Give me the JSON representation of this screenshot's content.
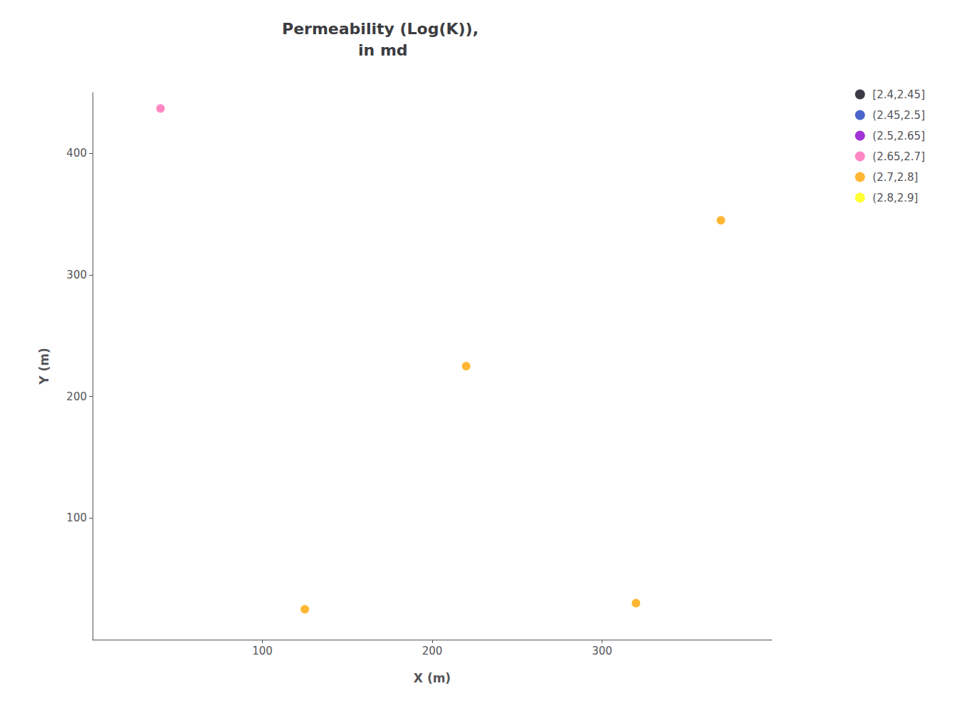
{
  "chart_data": {
    "type": "scatter",
    "title": "Permeability (Log(K)),\n in md",
    "xlabel": "X (m)",
    "ylabel": "Y (m)",
    "series": [
      {
        "name": "[2.4,2.45]",
        "color": "#0A0A1A",
        "x": [],
        "y": []
      },
      {
        "name": "(2.45,2.5]",
        "color": "#1F3FBF",
        "x": [],
        "y": []
      },
      {
        "name": "(2.5,2.65]",
        "color": "#8B00CC",
        "x": [],
        "y": []
      },
      {
        "name": "(2.65,2.7]",
        "color": "#FF69B4",
        "x": [
          40
        ],
        "y": [
          437
        ]
      },
      {
        "name": "(2.7,2.8]",
        "color": "#FFA500",
        "x": [
          220,
          125,
          320,
          370
        ],
        "y": [
          225,
          25,
          30,
          345
        ]
      },
      {
        "name": "(2.8,2.9]",
        "color": "#FFFF00",
        "x": [],
        "y": []
      }
    ],
    "xlim": [
      0,
      400
    ],
    "ylim": [
      0,
      450
    ],
    "xticks": [
      100,
      200,
      300
    ],
    "yticks": [
      100,
      200,
      300,
      400
    ],
    "grid": false,
    "legend": "right"
  }
}
